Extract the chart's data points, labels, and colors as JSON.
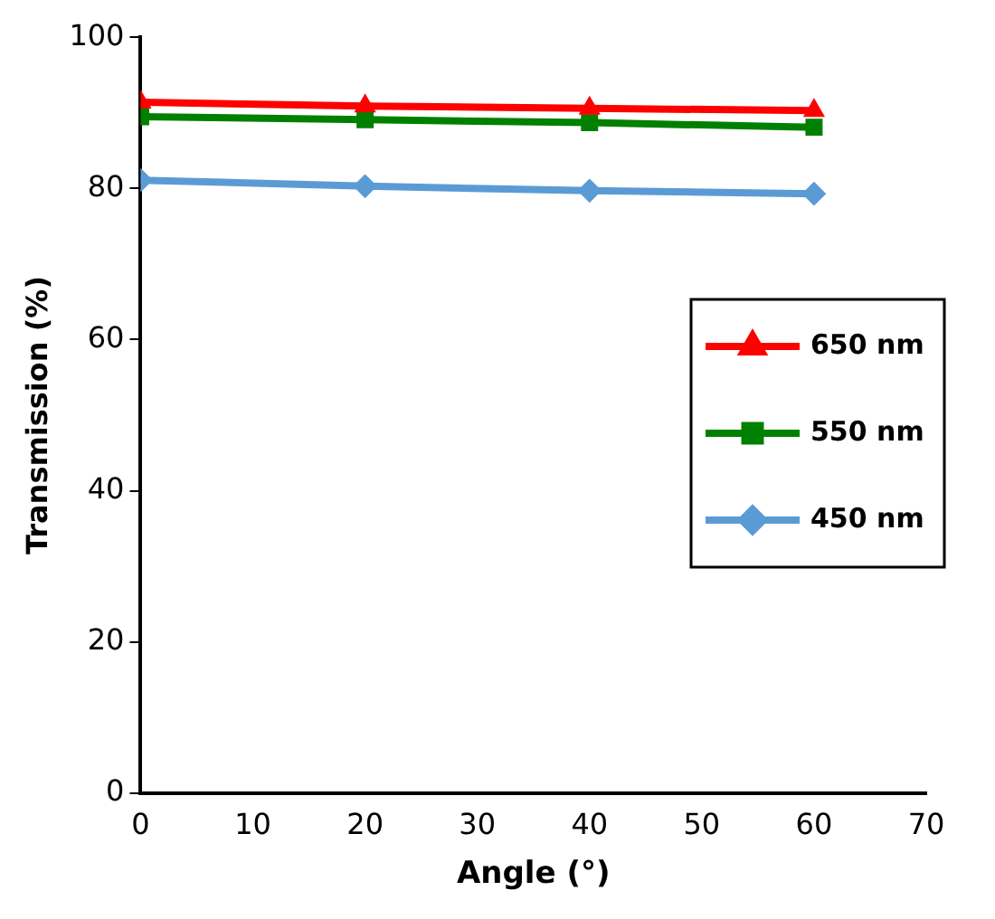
{
  "chart_data": {
    "type": "line",
    "xlabel": "Angle (°)",
    "ylabel": "Transmission (%)",
    "x": [
      0,
      20,
      40,
      60
    ],
    "series": [
      {
        "name": "650 nm",
        "color": "#ff0000",
        "marker": "triangle",
        "values": [
          91.4,
          90.9,
          90.6,
          90.3
        ]
      },
      {
        "name": "550 nm",
        "color": "#008000",
        "marker": "square",
        "values": [
          89.5,
          89.1,
          88.7,
          88.1
        ]
      },
      {
        "name": "450 nm",
        "color": "#5b9bd5",
        "marker": "diamond",
        "values": [
          81.1,
          80.3,
          79.7,
          79.3
        ]
      }
    ],
    "xlim": [
      0,
      70
    ],
    "xticks": [
      0,
      10,
      20,
      30,
      40,
      50,
      60,
      70
    ],
    "ylim": [
      0,
      100
    ],
    "yticks": [
      0,
      20,
      40,
      60,
      80,
      100
    ],
    "grid": false,
    "legend": "right",
    "line_style": "solid"
  }
}
